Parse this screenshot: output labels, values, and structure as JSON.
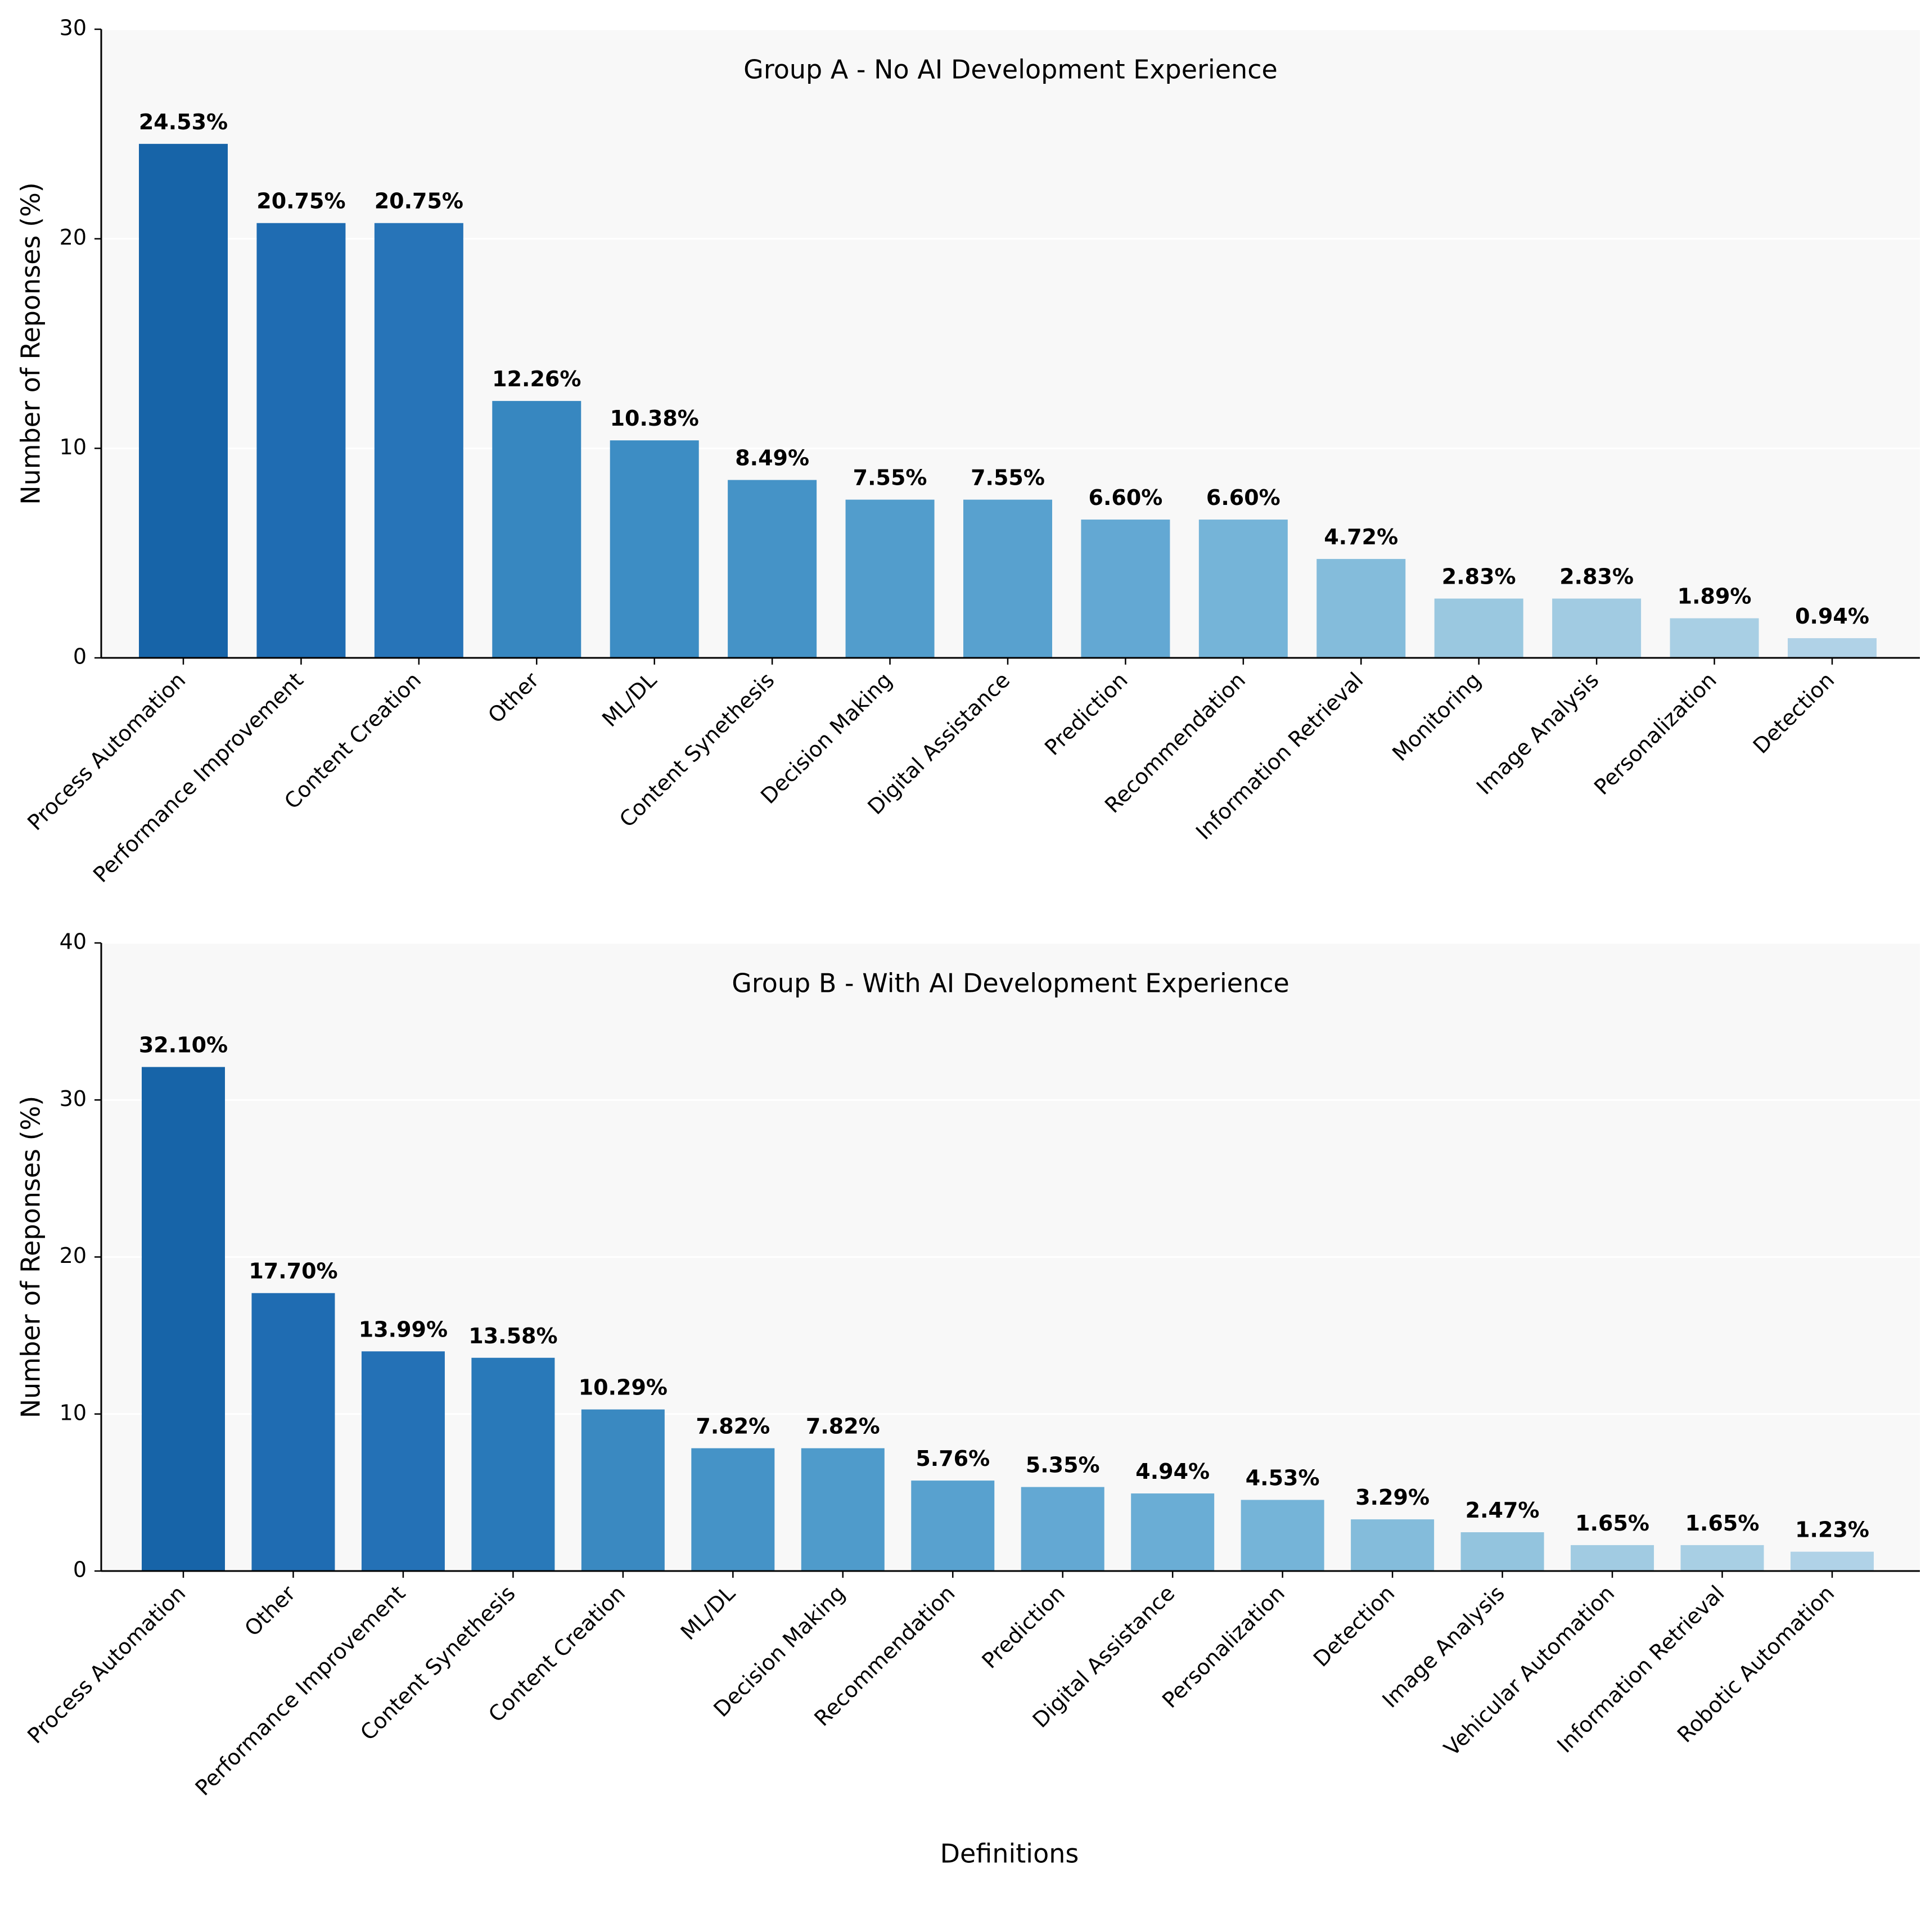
{
  "figure": {
    "xlabel": "Definitions"
  },
  "chart_data": [
    {
      "type": "bar",
      "title": "Group A - No AI Development Experience",
      "xlabel": "",
      "ylabel": "Number of Reponses (%)",
      "ylim": [
        0,
        30
      ],
      "yticks": [
        0,
        10,
        20,
        30
      ],
      "grid": "horizontal",
      "categories": [
        "Process Automation",
        "Performance Improvement",
        "Content Creation",
        "Other",
        "ML/DL",
        "Content Synethesis",
        "Decision Making",
        "Digital Assistance",
        "Prediction",
        "Recommendation",
        "Information Retrieval",
        "Monitoring",
        "Image Analysis",
        "Personalization",
        "Detection"
      ],
      "values": [
        24.53,
        20.75,
        20.75,
        12.26,
        10.38,
        8.49,
        7.55,
        7.55,
        6.6,
        6.6,
        4.72,
        2.83,
        2.83,
        1.89,
        0.94
      ],
      "value_labels": [
        "24.53%",
        "20.75%",
        "20.75%",
        "12.26%",
        "10.38%",
        "8.49%",
        "7.55%",
        "7.55%",
        "6.60%",
        "6.60%",
        "4.72%",
        "2.83%",
        "2.83%",
        "1.89%",
        "0.94%"
      ],
      "colors": [
        "#1764a8",
        "#1f6cb2",
        "#2774b8",
        "#3787c0",
        "#3d8dc4",
        "#4593c7",
        "#529dcc",
        "#58a1cf",
        "#63a8d3",
        "#75b4d8",
        "#84bcdb",
        "#9ac8e0",
        "#a1cbe2",
        "#a8cfe4",
        "#b0d2e7"
      ]
    },
    {
      "type": "bar",
      "title": "Group B - With AI Development Experience",
      "xlabel": "Definitions",
      "ylabel": "Number of Reponses (%)",
      "ylim": [
        0,
        40
      ],
      "yticks": [
        0,
        10,
        20,
        30,
        40
      ],
      "grid": "horizontal",
      "categories": [
        "Process Automation",
        "Other",
        "Performance Improvement",
        "Content Synethesis",
        "Content Creation",
        "ML/DL",
        "Decision Making",
        "Recommendation",
        "Prediction",
        "Digital Assistance",
        "Personalization",
        "Detection",
        "Image Analysis",
        "Vehicular Automation",
        "Information Retrieval",
        "Robotic Automation"
      ],
      "values": [
        32.1,
        17.7,
        13.99,
        13.58,
        10.29,
        7.82,
        7.82,
        5.76,
        5.35,
        4.94,
        4.53,
        3.29,
        2.47,
        1.65,
        1.65,
        1.23
      ],
      "value_labels": [
        "32.10%",
        "17.70%",
        "13.99%",
        "13.58%",
        "10.29%",
        "7.82%",
        "7.82%",
        "5.76%",
        "5.35%",
        "4.94%",
        "4.53%",
        "3.29%",
        "2.47%",
        "1.65%",
        "1.65%",
        "1.23%"
      ],
      "colors": [
        "#1764a8",
        "#1f6cb2",
        "#2471b6",
        "#2979b9",
        "#3a89c1",
        "#4593c7",
        "#4f9bcb",
        "#58a1cf",
        "#63a8d3",
        "#6aadd5",
        "#75b4d8",
        "#84bcdb",
        "#93c4de",
        "#a1cbe2",
        "#a8cfe4",
        "#b0d2e7"
      ]
    }
  ]
}
